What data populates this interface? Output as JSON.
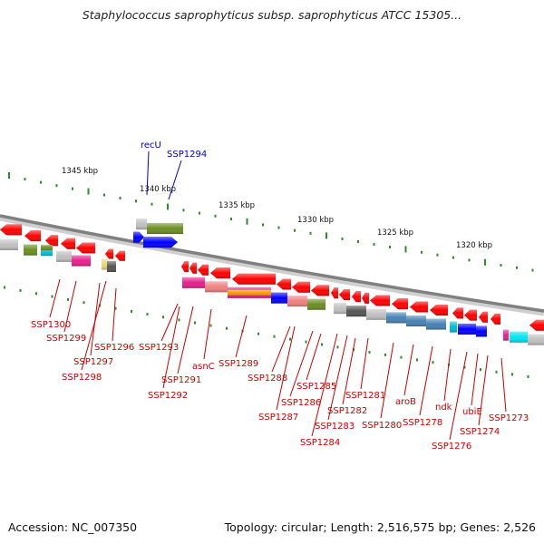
{
  "title": "Staphylococcus saprophyticus subsp. saprophyticus ATCC 15305...",
  "footer": {
    "accession": "Accession: NC_007350",
    "summary": "Topology: circular; Length: 2,516,575 bp; Genes: 2,526"
  },
  "scale_labels": [
    "1345 kbp",
    "1340 kbp",
    "1335 kbp",
    "1330 kbp",
    "1325 kbp",
    "1320 kbp"
  ],
  "colors": {
    "backbone": "#808080",
    "forward_label": "#0000cc",
    "reverse_label": "#cc0000",
    "arrow_red": "#ff0000",
    "tick_green": "#2e8b2e"
  },
  "forward_genes": [
    {
      "label": "recU",
      "color": "#0000ff"
    },
    {
      "label": "SSP1294",
      "color": "#6b8e23"
    }
  ],
  "reverse_genes": [
    {
      "label": "SSP1300"
    },
    {
      "label": "SSP1299"
    },
    {
      "label": "SSP1298"
    },
    {
      "label": "SSP1297"
    },
    {
      "label": "SSP1296"
    },
    {
      "label": "SSP1293"
    },
    {
      "label": "SSP1292"
    },
    {
      "label": "SSP1291"
    },
    {
      "label": "asnC"
    },
    {
      "label": "SSP1289"
    },
    {
      "label": "SSP1288"
    },
    {
      "label": "SSP1287"
    },
    {
      "label": "SSP1286"
    },
    {
      "label": "SSP1285"
    },
    {
      "label": "SSP1284"
    },
    {
      "label": "SSP1283"
    },
    {
      "label": "SSP1282"
    },
    {
      "label": "SSP1281"
    },
    {
      "label": "SSP1280"
    },
    {
      "label": "aroB"
    },
    {
      "label": "SSP1278"
    },
    {
      "label": "ndk"
    },
    {
      "label": "SSP1276"
    },
    {
      "label": "ubiE"
    },
    {
      "label": "SSP1274"
    },
    {
      "label": "SSP1273"
    }
  ]
}
